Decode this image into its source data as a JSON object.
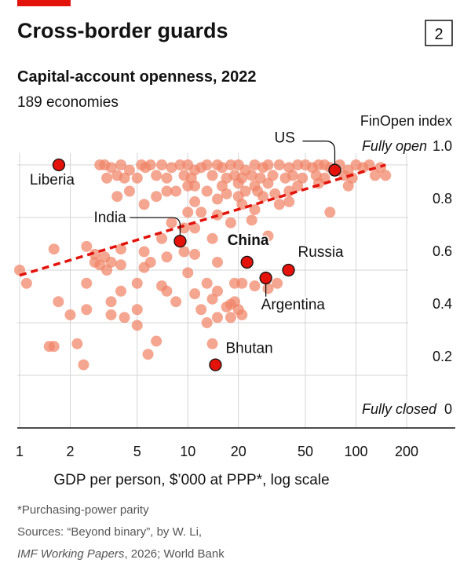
{
  "chart_data": {
    "type": "scatter",
    "badge": "2",
    "title": "Cross-border guards",
    "subtitle": "Capital-account openness, 2022",
    "note": "189 economies",
    "y_label": "FinOpen index",
    "y_top_annotation": "Fully open",
    "y_bottom_annotation": "Fully closed",
    "x_label": "GDP per person, $’000 at PPP*, log scale",
    "footnote": "*Purchasing-power parity",
    "source_line1": "Sources: “Beyond binary”, by W. Li,",
    "source_italic": "IMF Working Papers",
    "source_rest": ", 2026; World Bank",
    "log_x": true,
    "grid": true,
    "xlim": [
      1,
      200
    ],
    "ylim": [
      0,
      1
    ],
    "xticks": [
      1,
      2,
      5,
      10,
      20,
      50,
      100,
      200
    ],
    "yticks": [
      0,
      0.2,
      0.4,
      0.6,
      0.8,
      {
        "value": 1,
        "label": "1.0"
      }
    ],
    "point_color": "#f08466",
    "highlight_color": "#e3120b",
    "trend_color": "#e3120b",
    "trend": {
      "x": [
        1,
        150
      ],
      "y": [
        0.58,
        1
      ]
    },
    "points": {
      "x": [
        3,
        3.2,
        3.5,
        4,
        4.5,
        5.3,
        5.6,
        6,
        7,
        8,
        9,
        10,
        11,
        12,
        13,
        15,
        16,
        18,
        20,
        22,
        25,
        28,
        30,
        35,
        40,
        45,
        50,
        55,
        60,
        65,
        70,
        80,
        90,
        100,
        110,
        120,
        140,
        3.3,
        3.8,
        4.2,
        5,
        6.5,
        7.5,
        9.5,
        10.5,
        14,
        17,
        19,
        21,
        24,
        27,
        32,
        38,
        42,
        48,
        58,
        65,
        85,
        95,
        130,
        150,
        10,
        11,
        16,
        20,
        25,
        30,
        45,
        60,
        4.5,
        7.5,
        8.5,
        13,
        17,
        22,
        26,
        33,
        40,
        90,
        3.8,
        6.5,
        15,
        20,
        28,
        5.5,
        11,
        21,
        35,
        40,
        10,
        12,
        15,
        25,
        70,
        8,
        18,
        24,
        9.5,
        11,
        7,
        14,
        30,
        1.6,
        2.5,
        4,
        5.5,
        11,
        2.8,
        3.2,
        7.5,
        9.5,
        2.8,
        3,
        3.5,
        4,
        6,
        15,
        1,
        3.3,
        5.5,
        10,
        1.1,
        2.5,
        5,
        7,
        13,
        19,
        21,
        25,
        34,
        4,
        7.5,
        11,
        15,
        30,
        1.7,
        3.5,
        8.5,
        14,
        18,
        19,
        2.5,
        5,
        12,
        17,
        20,
        2,
        3.5,
        4.2,
        15,
        18,
        21,
        5,
        13,
        6.5,
        14,
        1.5,
        1.6,
        2.2,
        5.8,
        2.4
      ],
      "y": [
        1,
        1,
        0.99,
        1,
        0.98,
        1,
        0.99,
        1,
        1,
        0.99,
        1,
        1,
        0.98,
        0.99,
        1,
        1,
        0.99,
        1,
        1,
        0.98,
        1,
        0.99,
        1,
        1,
        0.99,
        1,
        1,
        0.99,
        1,
        1,
        0.99,
        1,
        0.98,
        1,
        0.99,
        1,
        0.99,
        0.95,
        0.96,
        0.95,
        0.95,
        0.96,
        0.95,
        0.96,
        0.95,
        0.96,
        0.95,
        0.96,
        0.95,
        0.96,
        0.95,
        0.96,
        0.95,
        0.96,
        0.95,
        0.96,
        0.95,
        0.96,
        0.95,
        0.96,
        0.96,
        0.92,
        0.92,
        0.92,
        0.93,
        0.92,
        0.93,
        0.92,
        0.93,
        0.9,
        0.9,
        0.9,
        0.9,
        0.89,
        0.9,
        0.9,
        0.89,
        0.9,
        0.92,
        0.88,
        0.88,
        0.87,
        0.88,
        0.88,
        0.85,
        0.86,
        0.85,
        0.85,
        0.86,
        0.82,
        0.82,
        0.81,
        0.83,
        0.82,
        0.78,
        0.78,
        0.79,
        0.76,
        0.76,
        0.72,
        0.72,
        0.73,
        0.68,
        0.69,
        0.68,
        0.67,
        0.66,
        0.66,
        0.65,
        0.65,
        0.67,
        0.63,
        0.62,
        0.63,
        0.62,
        0.63,
        0.63,
        0.6,
        0.6,
        0.61,
        0.59,
        0.55,
        0.55,
        0.55,
        0.54,
        0.55,
        0.55,
        0.55,
        0.54,
        0.55,
        0.52,
        0.52,
        0.51,
        0.52,
        0.53,
        0.48,
        0.48,
        0.48,
        0.49,
        0.47,
        0.48,
        0.45,
        0.45,
        0.45,
        0.46,
        0.45,
        0.43,
        0.43,
        0.42,
        0.42,
        0.42,
        0.43,
        0.39,
        0.4,
        0.33,
        0.32,
        0.31,
        0.31,
        0.32,
        0.28,
        0.24
      ]
    },
    "highlights": {
      "labels": [
        "Liberia",
        "India",
        "China",
        "Russia",
        "Argentina",
        "Bhutan",
        "US"
      ],
      "x": [
        1.71,
        9,
        22.5,
        39.7,
        29.1,
        14.6,
        74.8
      ],
      "y": [
        1,
        0.71,
        0.63,
        0.6,
        0.57,
        0.24,
        0.98
      ]
    }
  }
}
